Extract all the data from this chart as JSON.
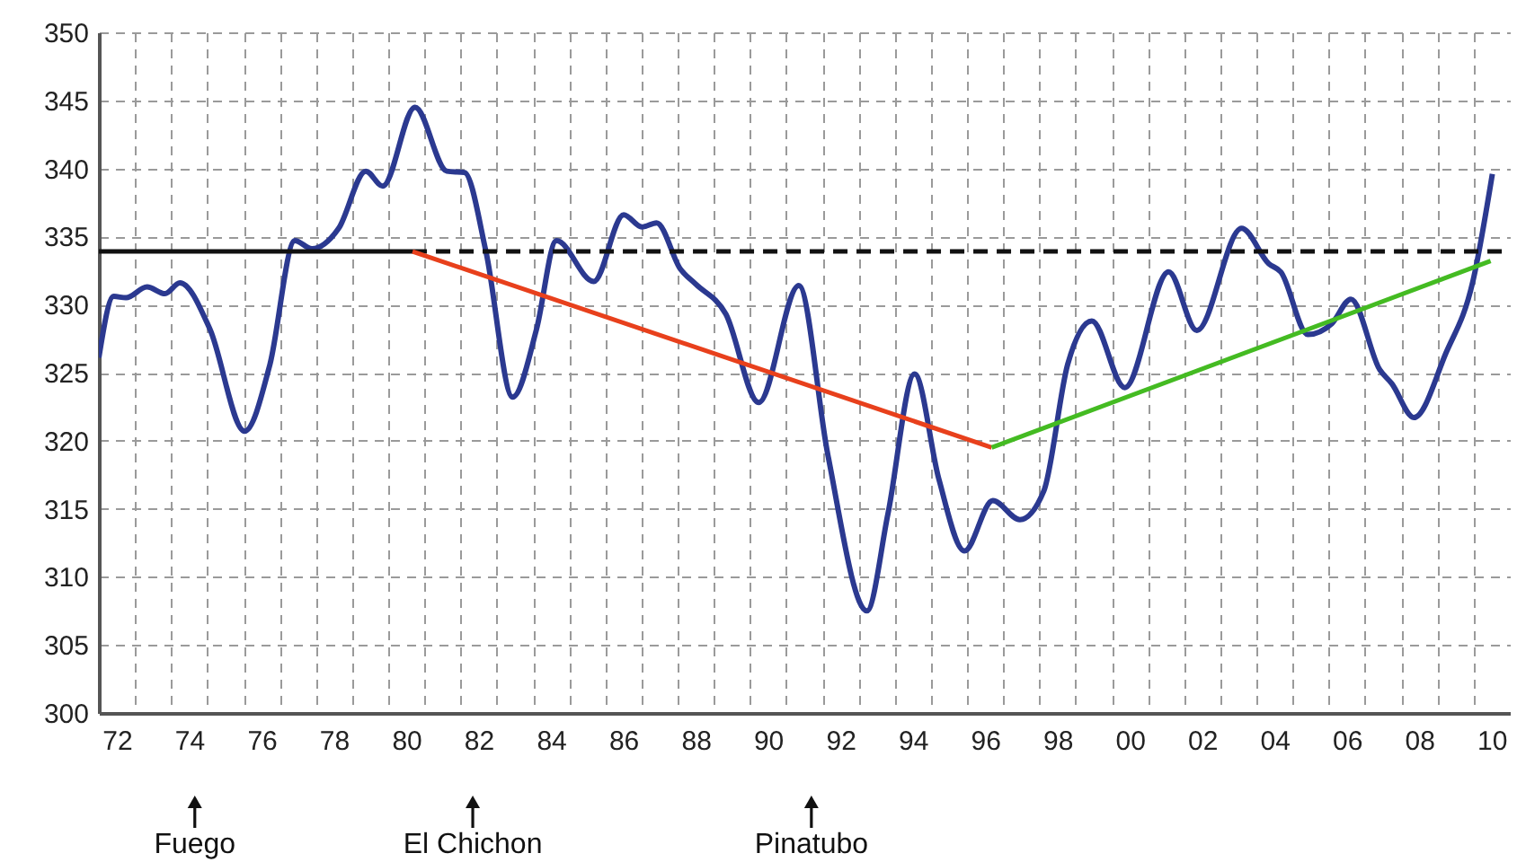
{
  "chart_data": {
    "type": "line",
    "xlim": [
      "1972-01-01",
      "2011-01-01"
    ],
    "xticks": [
      {
        "value": "1972-07",
        "label": "72"
      },
      {
        "value": "1973",
        "label": null
      },
      {
        "value": "1974",
        "label": null
      },
      {
        "value": "1974-07",
        "label": "74"
      },
      {
        "value": "1975",
        "label": null
      },
      {
        "value": "1976",
        "label": null
      },
      {
        "value": "1976-07",
        "label": "76"
      },
      {
        "value": "1977",
        "label": null
      },
      {
        "value": "1978",
        "label": null
      },
      {
        "value": "1978-07",
        "label": "78"
      },
      {
        "value": "1979",
        "label": null
      },
      {
        "value": "1980",
        "label": null
      },
      {
        "value": "1980-07",
        "label": "80"
      },
      {
        "value": "1981",
        "label": null
      },
      {
        "value": "1982",
        "label": null
      },
      {
        "value": "1982-07",
        "label": "82"
      },
      {
        "value": "1983",
        "label": null
      },
      {
        "value": "1984",
        "label": null
      },
      {
        "value": "1984-07",
        "label": "84"
      },
      {
        "value": "1985",
        "label": null
      },
      {
        "value": "1986",
        "label": null
      },
      {
        "value": "1986-07",
        "label": "86"
      },
      {
        "value": "1987",
        "label": null
      },
      {
        "value": "1988",
        "label": null
      },
      {
        "value": "1988-07",
        "label": "88"
      },
      {
        "value": "1989",
        "label": null
      },
      {
        "value": "1990",
        "label": null
      },
      {
        "value": "1990-07",
        "label": "90"
      },
      {
        "value": "1991",
        "label": null
      },
      {
        "value": "1992",
        "label": null
      },
      {
        "value": "1992-07",
        "label": "92"
      },
      {
        "value": "1993",
        "label": null
      },
      {
        "value": "1994",
        "label": null
      },
      {
        "value": "1994-07",
        "label": "94"
      },
      {
        "value": "1995",
        "label": null
      },
      {
        "value": "1996",
        "label": null
      },
      {
        "value": "1996-07",
        "label": "96"
      },
      {
        "value": "1997",
        "label": null
      },
      {
        "value": "1998",
        "label": null
      },
      {
        "value": "1998-07",
        "label": "98"
      },
      {
        "value": "1999",
        "label": null
      },
      {
        "value": "2000",
        "label": null
      },
      {
        "value": "2000-07",
        "label": "00"
      },
      {
        "value": "2001",
        "label": null
      },
      {
        "value": "2002",
        "label": null
      },
      {
        "value": "2002-07",
        "label": "02"
      },
      {
        "value": "2003",
        "label": null
      },
      {
        "value": "2004",
        "label": null
      },
      {
        "value": "2004-07",
        "label": "04"
      },
      {
        "value": "2005",
        "label": null
      },
      {
        "value": "2006",
        "label": null
      },
      {
        "value": "2006-07",
        "label": "06"
      },
      {
        "value": "2007",
        "label": null
      },
      {
        "value": "2008",
        "label": null
      },
      {
        "value": "2008-07",
        "label": "08"
      },
      {
        "value": "2009",
        "label": null
      },
      {
        "value": "2010",
        "label": null
      },
      {
        "value": "2010-07",
        "label": "10"
      }
    ],
    "ylim": [
      300,
      350
    ],
    "yticks": [
      300,
      305,
      310,
      315,
      320,
      325,
      330,
      335,
      340,
      345,
      350
    ],
    "grid": true,
    "annotations": [
      "Fuego",
      "El Chichon",
      "Pinatubo"
    ],
    "series": [
      {
        "color": "#2b3990",
        "line_style": "solid",
        "x": [
          "1972-01-01",
          "1972-05-30",
          "1972-10-01",
          "1973-05-01",
          "1973-10-30",
          "1974-03-29",
          "1975-01-26",
          "1976-01-11",
          "1976-09-23",
          "1977-06-02",
          "1977-11-21",
          "1978-08-18",
          "1979-05-19",
          "1979-11-06",
          "1980-09-27",
          "1981-08-14",
          "1982-02-09",
          "1982-09-13",
          "1983-06-10",
          "1984-02-06",
          "1984-08-25",
          "1985-09-05",
          "1986-07-05",
          "1987-01-04",
          "1987-06-02",
          "1988-01-29",
          "1988-07-01",
          "1989-05-01",
          "1990-03-29",
          "1991-05-08",
          "1992-02-24",
          "1993-03-25",
          "1993-10-23",
          "1994-07-20",
          "1995-03-21",
          "1995-12-05",
          "1996-09-16",
          "1997-06-17",
          "1998-02-13",
          "1998-10-12",
          "1999-06-13",
          "2000-05-11",
          "2001-07-27",
          "2002-05-08",
          "2003-08-03",
          "2004-05-04",
          "2004-09-02",
          "2005-06-02",
          "2006-01-29",
          "2006-08-11",
          "2007-05-30",
          "2007-09-27",
          "2008-05-08",
          "2009-03-25",
          "2009-12-24",
          "2010-07-09"
        ],
        "values": [
          326.1,
          330.6,
          330.5,
          331.3,
          330.8,
          331.6,
          328.2,
          320.7,
          325.6,
          334.7,
          334.1,
          335.6,
          339.8,
          338.7,
          344.5,
          339.8,
          339.7,
          333.9,
          323.2,
          328.2,
          334.7,
          331.7,
          336.6,
          335.7,
          336.0,
          332.6,
          331.5,
          329.3,
          322.8,
          331.4,
          319.0,
          307.5,
          314.6,
          324.9,
          317.2,
          311.9,
          315.6,
          314.2,
          316.3,
          325.6,
          328.8,
          323.9,
          332.4,
          328.1,
          335.6,
          333.0,
          332.4,
          327.8,
          328.6,
          330.4,
          325.2,
          324.2,
          321.7,
          326.4,
          331.7,
          339.6
        ]
      },
      {
        "type": "line",
        "color": "#111111",
        "line_style": "solid",
        "x": [
          "1972-01-01",
          "1980-09-02"
        ],
        "values": [
          333.9,
          333.9
        ]
      },
      {
        "type": "line",
        "color": "#111111",
        "line_style": "dashed",
        "x": [
          "1980-09-02",
          "2011-01-01"
        ],
        "values": [
          333.9,
          333.9
        ]
      },
      {
        "type": "line",
        "color": "#e8401c",
        "line_style": "solid",
        "x": [
          "1980-09-02",
          "1996-09-05"
        ],
        "values": [
          333.9,
          319.5
        ]
      },
      {
        "type": "line",
        "color": "#44bb22",
        "line_style": "solid",
        "x": [
          "1996-09-05",
          "2010-06-21"
        ],
        "values": [
          319.5,
          333.2
        ]
      }
    ]
  }
}
